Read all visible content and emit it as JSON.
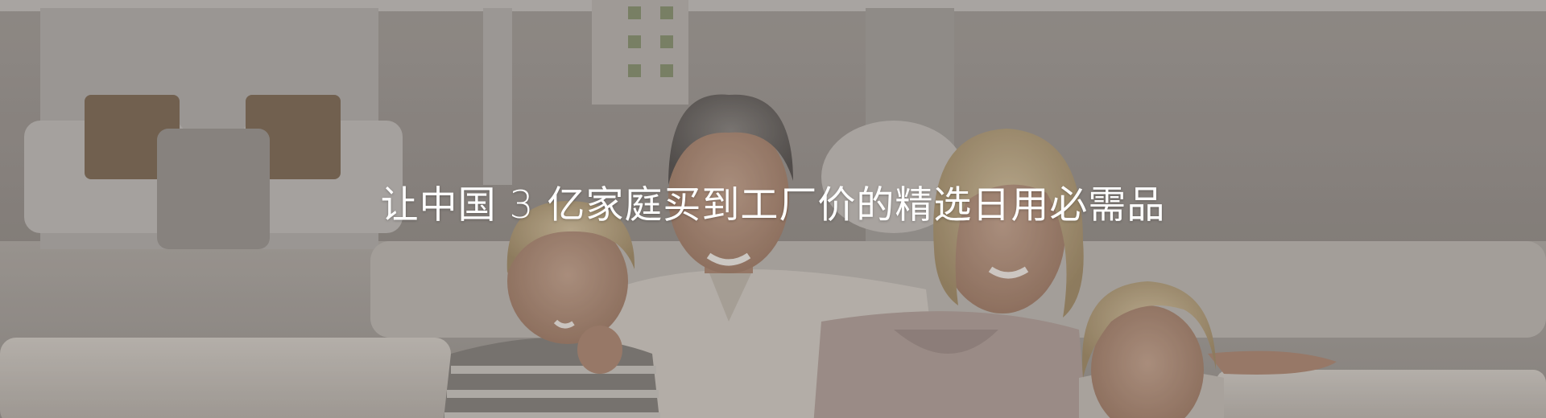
{
  "banner": {
    "headline": "让中国 3 亿家庭买到工厂价的精选日用必需品",
    "text_color": "#ffffff",
    "photo_subject": "family-on-sofa"
  }
}
